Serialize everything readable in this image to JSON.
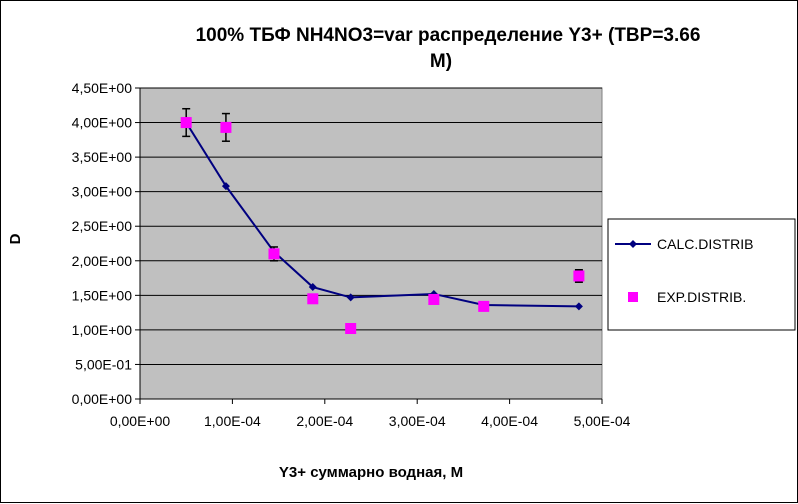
{
  "chart_data": {
    "type": "line",
    "title_lines": [
      "100%  ТБФ  NH4NO3=var распределение Y3+ (TBP=3.66",
      "M)"
    ],
    "xlabel": "Y3+ суммарно   водная, М",
    "ylabel": "D",
    "xlim": [
      0,
      0.0005
    ],
    "ylim": [
      0,
      4.5
    ],
    "x_ticks": [
      0,
      0.0001,
      0.0002,
      0.0003,
      0.0004,
      0.0005
    ],
    "x_tick_labels": [
      "0,00E+00",
      "1,00E-04",
      "2,00E-04",
      "3,00E-04",
      "4,00E-04",
      "5,00E-04"
    ],
    "y_ticks": [
      0,
      0.5,
      1,
      1.5,
      2,
      2.5,
      3,
      3.5,
      4,
      4.5
    ],
    "y_tick_labels": [
      "0,00E+00",
      "5,00E-01",
      "1,00E+00",
      "1,50E+00",
      "2,00E+00",
      "2,50E+00",
      "3,00E+00",
      "3,50E+00",
      "4,00E+00",
      "4,50E+00"
    ],
    "grid": "horizontal",
    "plot_background": "#c0c0c0",
    "legend_position": "right",
    "series": [
      {
        "name": "CALC.DISTRIB",
        "style": "line-diamond",
        "color": "#000080",
        "x": [
          5e-05,
          9.3e-05,
          0.000145,
          0.000187,
          0.000228,
          0.000318,
          0.000372,
          0.000475
        ],
        "y": [
          4.0,
          3.08,
          2.13,
          1.62,
          1.47,
          1.52,
          1.36,
          1.34
        ]
      },
      {
        "name": "EXP.DISTRIB.",
        "style": "square-marker",
        "color": "#ff00ff",
        "x": [
          5e-05,
          9.3e-05,
          0.000145,
          0.000187,
          0.000228,
          0.000318,
          0.000372,
          0.000475
        ],
        "y": [
          4.0,
          3.93,
          2.1,
          1.45,
          1.02,
          1.44,
          1.34,
          1.78
        ],
        "error": [
          0.2,
          0.2,
          0.1,
          0,
          0,
          0,
          0,
          0.09
        ]
      }
    ]
  }
}
